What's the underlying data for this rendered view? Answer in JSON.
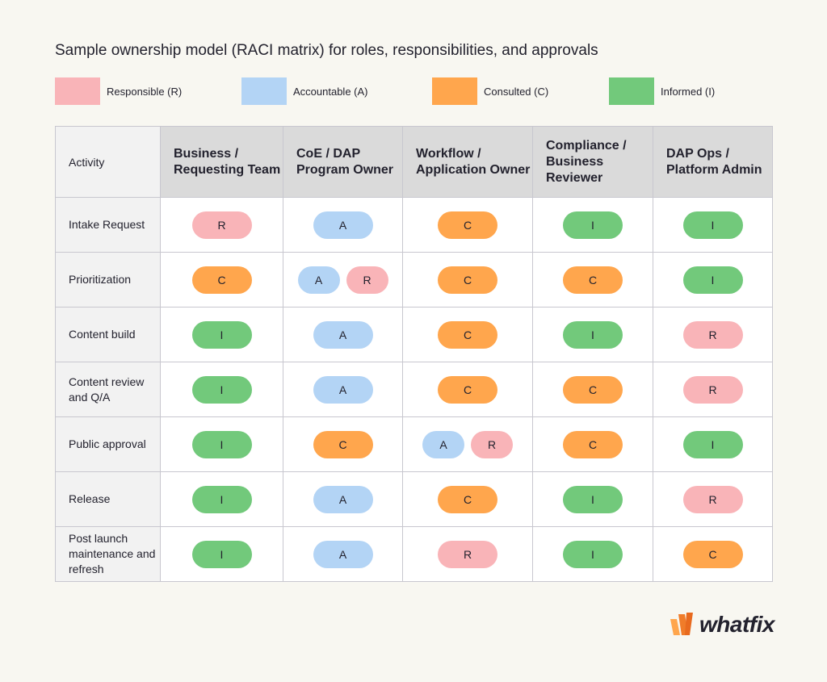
{
  "title": "Sample ownership model (RACI matrix) for roles, responsibilities, and approvals",
  "colors": {
    "R": "#f9b4b8",
    "A": "#b3d4f5",
    "C": "#ffa64d",
    "I": "#72c97b"
  },
  "legend": [
    {
      "key": "R",
      "label": "Responsible (R)"
    },
    {
      "key": "A",
      "label": "Accountable (A)"
    },
    {
      "key": "C",
      "label": "Consulted (C)"
    },
    {
      "key": "I",
      "label": "Informed (I)"
    }
  ],
  "table": {
    "activity_header": "Activity",
    "columns": [
      "Business / Requesting Team",
      "CoE / DAP Program Owner",
      "Workflow / Application Owner",
      "Compliance / Business Reviewer",
      "DAP Ops / Platform Admin"
    ],
    "rows": [
      {
        "activity": "Intake Request",
        "cells": [
          [
            "R"
          ],
          [
            "A"
          ],
          [
            "C"
          ],
          [
            "I"
          ],
          [
            "I"
          ]
        ]
      },
      {
        "activity": "Prioritization",
        "cells": [
          [
            "C"
          ],
          [
            "A",
            "R"
          ],
          [
            "C"
          ],
          [
            "C"
          ],
          [
            "I"
          ]
        ]
      },
      {
        "activity": "Content build",
        "cells": [
          [
            "I"
          ],
          [
            "A"
          ],
          [
            "C"
          ],
          [
            "I"
          ],
          [
            "R"
          ]
        ]
      },
      {
        "activity": "Content review and Q/A",
        "cells": [
          [
            "I"
          ],
          [
            "A"
          ],
          [
            "C"
          ],
          [
            "C"
          ],
          [
            "R"
          ]
        ]
      },
      {
        "activity": "Public approval",
        "cells": [
          [
            "I"
          ],
          [
            "C"
          ],
          [
            "A",
            "R"
          ],
          [
            "C"
          ],
          [
            "I"
          ]
        ]
      },
      {
        "activity": "Release",
        "cells": [
          [
            "I"
          ],
          [
            "A"
          ],
          [
            "C"
          ],
          [
            "I"
          ],
          [
            "R"
          ]
        ]
      },
      {
        "activity": "Post launch maintenance and refresh",
        "cells": [
          [
            "I"
          ],
          [
            "A"
          ],
          [
            "R"
          ],
          [
            "I"
          ],
          [
            "C"
          ]
        ]
      }
    ]
  },
  "logo": {
    "text": "whatfix"
  }
}
